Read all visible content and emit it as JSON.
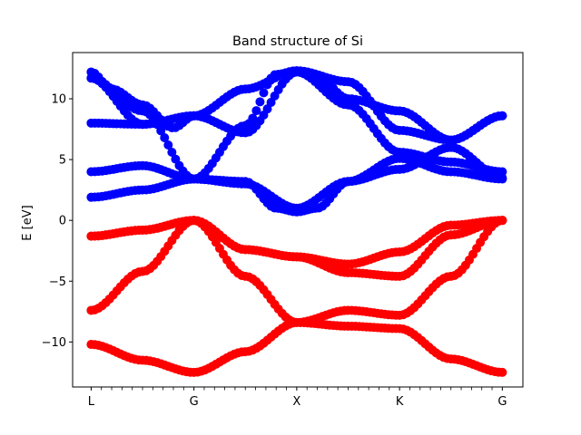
{
  "chart_data": {
    "type": "scatter",
    "title": "Band structure of Si",
    "xlabel": "",
    "ylabel": "E [eV]",
    "ylim": [
      -13.7,
      13.8
    ],
    "xlim": [
      -0.18,
      4.2
    ],
    "yticks": [
      {
        "value": 10,
        "label": "10"
      },
      {
        "value": 5,
        "label": "5"
      },
      {
        "value": 0,
        "label": "0"
      },
      {
        "value": -5,
        "label": "−5"
      },
      {
        "value": -10,
        "label": "−10"
      }
    ],
    "xticks": [
      {
        "value": 0,
        "label": "L"
      },
      {
        "value": 1,
        "label": "G"
      },
      {
        "value": 2,
        "label": "X"
      },
      {
        "value": 3,
        "label": "K"
      },
      {
        "value": 4,
        "label": "G"
      }
    ],
    "grid": false,
    "series": [
      {
        "role": "valence",
        "color": "#ff0000",
        "bands": [
          {
            "x": [
              0,
              0.5,
              1,
              1.5,
              2,
              2.5,
              3,
              3.5,
              4
            ],
            "y": [
              -10.2,
              -11.5,
              -12.5,
              -10.8,
              -8.4,
              -8.7,
              -8.9,
              -11.4,
              -12.5
            ]
          },
          {
            "x": [
              0,
              0.5,
              1,
              1.5,
              2,
              2.5,
              3,
              3.5,
              4
            ],
            "y": [
              -7.4,
              -4.2,
              0.0,
              -4.6,
              -8.4,
              -7.4,
              -7.8,
              -4.6,
              0.0
            ]
          },
          {
            "x": [
              0,
              0.5,
              1,
              1.5,
              2,
              2.5,
              3,
              3.5,
              4
            ],
            "y": [
              -1.3,
              -0.8,
              0.0,
              -2.4,
              -3.0,
              -3.6,
              -2.6,
              -0.4,
              0.0
            ]
          },
          {
            "x": [
              0,
              0.5,
              1,
              1.5,
              2,
              2.5,
              3,
              3.5,
              4
            ],
            "y": [
              -1.3,
              -0.8,
              0.0,
              -2.4,
              -3.0,
              -4.3,
              -4.6,
              -1.2,
              0.0
            ]
          }
        ]
      },
      {
        "role": "conduction",
        "color": "#0000ff",
        "bands": [
          {
            "x": [
              0,
              0.5,
              1,
              1.5,
              1.8,
              2,
              2.2,
              2.5,
              3,
              3.5,
              4
            ],
            "y": [
              1.9,
              2.5,
              3.4,
              3.2,
              1.0,
              0.7,
              1.0,
              3.2,
              4.2,
              6.0,
              3.5
            ]
          },
          {
            "x": [
              0,
              0.5,
              1,
              1.5,
              2,
              2.5,
              3,
              3.5,
              4
            ],
            "y": [
              4.0,
              4.5,
              3.4,
              3.0,
              1.0,
              3.2,
              5.1,
              4.0,
              3.4
            ]
          },
          {
            "x": [
              0,
              0.5,
              1,
              1.5,
              2,
              2.5,
              3,
              3.5,
              4
            ],
            "y": [
              8.0,
              7.9,
              8.6,
              7.2,
              12.2,
              9.5,
              5.6,
              4.8,
              4.0
            ]
          },
          {
            "x": [
              0,
              0.5,
              1,
              1.5,
              1.8,
              2,
              2.2,
              2.5,
              3,
              3.5,
              4
            ],
            "y": [
              11.7,
              9.0,
              3.4,
              7.8,
              12.0,
              12.3,
              11.8,
              10.0,
              9.0,
              6.6,
              8.6
            ]
          },
          {
            "x": [
              0,
              0.5,
              1,
              1.5,
              2,
              2.5,
              3,
              3.5,
              4
            ],
            "y": [
              11.7,
              7.9,
              8.6,
              10.8,
              12.3,
              11.4,
              7.4,
              6.6,
              8.6
            ]
          },
          {
            "x": [
              0,
              0.2,
              0.5,
              0.8,
              1
            ],
            "y": [
              12.2,
              10.8,
              9.5,
              7.6,
              8.6
            ]
          }
        ]
      }
    ]
  }
}
